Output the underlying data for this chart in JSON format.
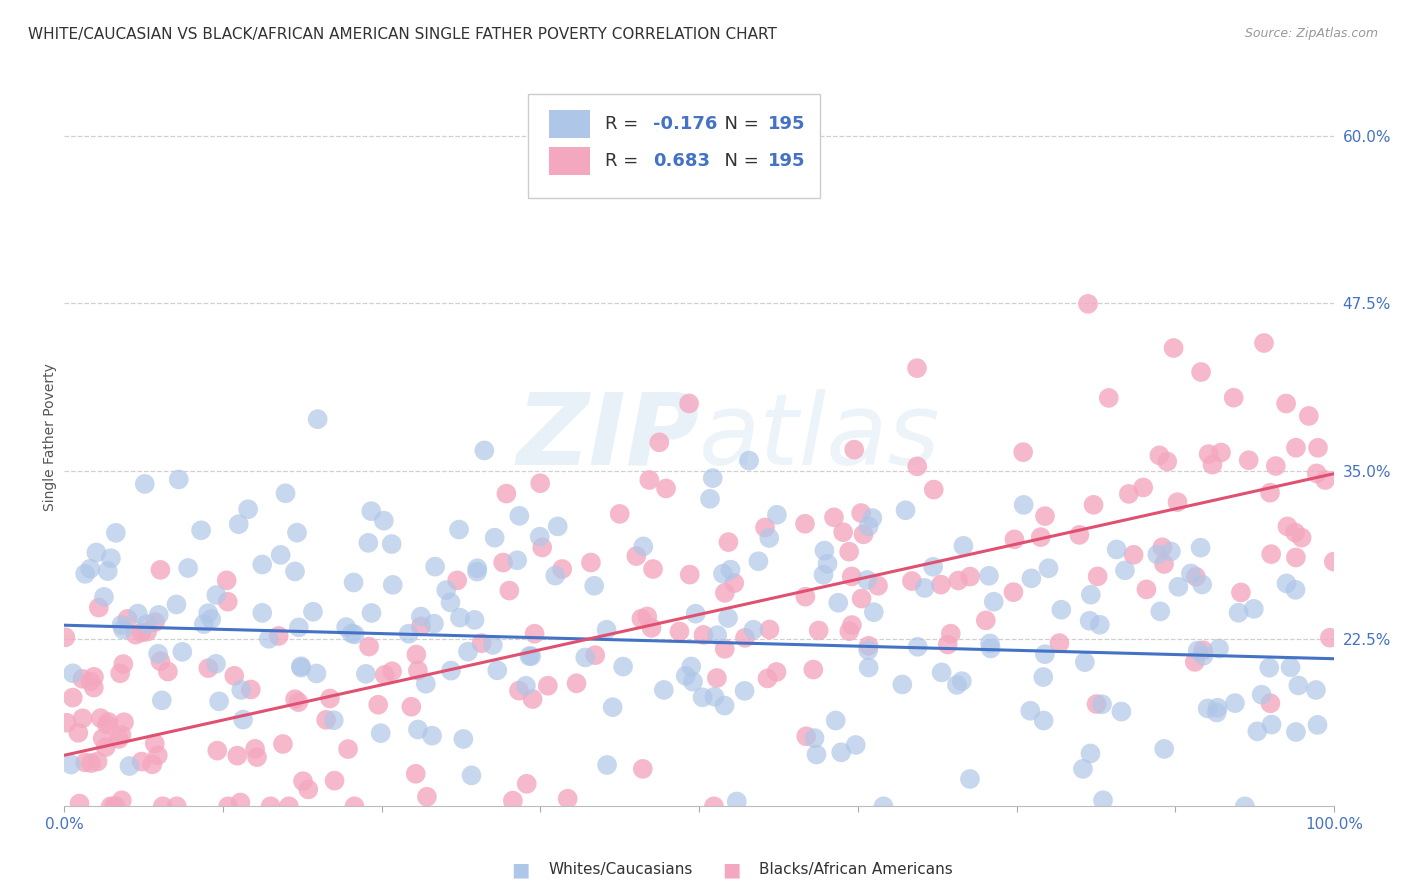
{
  "title": "WHITE/CAUCASIAN VS BLACK/AFRICAN AMERICAN SINGLE FATHER POVERTY CORRELATION CHART",
  "source": "Source: ZipAtlas.com",
  "ylabel": "Single Father Poverty",
  "watermark_zip": "ZIP",
  "watermark_atlas": "atlas",
  "blue_R": -0.176,
  "pink_R": 0.683,
  "N": 195,
  "blue_color": "#aec6e8",
  "pink_color": "#f4a8c0",
  "blue_line_color": "#4472c4",
  "pink_line_color": "#e05070",
  "axis_label_color": "#4472c4",
  "text_color": "#333333",
  "background_color": "#ffffff",
  "grid_color": "#d0d0d0",
  "xlim": [
    0.0,
    1.0
  ],
  "ylim": [
    0.1,
    0.65
  ],
  "yticks": [
    0.225,
    0.35,
    0.475,
    0.6
  ],
  "ytick_labels": [
    "22.5%",
    "35.0%",
    "47.5%",
    "60.0%"
  ],
  "legend_blue_label": "Whites/Caucasians",
  "legend_pink_label": "Blacks/African Americans",
  "title_fontsize": 11,
  "ylabel_fontsize": 10,
  "tick_fontsize": 11,
  "seed": 42,
  "blue_intercept": 0.235,
  "blue_slope": -0.025,
  "pink_intercept": 0.138,
  "pink_slope": 0.21
}
